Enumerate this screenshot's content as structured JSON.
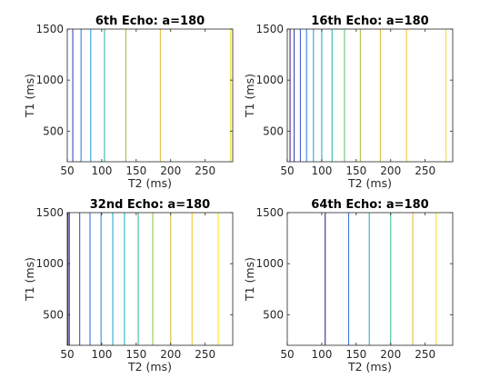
{
  "chart_data": [
    {
      "type": "line",
      "title": "6th Echo: a=180",
      "xlabel": "T2 (ms)",
      "ylabel": "T1 (ms)",
      "xlim": [
        50,
        290
      ],
      "ylim": [
        200,
        1500
      ],
      "xticks": [
        "50",
        "100",
        "150",
        "200",
        "250"
      ],
      "yticks": [
        "500",
        "1000",
        "1500"
      ],
      "grid": false,
      "contour_levels": [
        {
          "x": 58,
          "color": "#3b4fc0"
        },
        {
          "x": 70,
          "color": "#3c80d8"
        },
        {
          "x": 84,
          "color": "#2a9fd6"
        },
        {
          "x": 104,
          "color": "#36b8b2"
        },
        {
          "x": 135,
          "color": "#9bc24a"
        },
        {
          "x": 185,
          "color": "#e1bd3b"
        },
        {
          "x": 287,
          "color": "#f5e02c"
        }
      ]
    },
    {
      "type": "line",
      "title": "16th Echo: a=180",
      "xlabel": "T2 (ms)",
      "ylabel": "T1 (ms)",
      "xlim": [
        50,
        290
      ],
      "ylim": [
        200,
        1500
      ],
      "xticks": [
        "50",
        "100",
        "150",
        "200",
        "250"
      ],
      "yticks": [
        "500",
        "1000",
        "1500"
      ],
      "grid": false,
      "contour_levels": [
        {
          "x": 54,
          "color": "#3e2a8f"
        },
        {
          "x": 60,
          "color": "#4540b8"
        },
        {
          "x": 69,
          "color": "#3f63d6"
        },
        {
          "x": 78,
          "color": "#3a85e0"
        },
        {
          "x": 88,
          "color": "#2f9ed8"
        },
        {
          "x": 100,
          "color": "#26aecb"
        },
        {
          "x": 115,
          "color": "#2dbbb1"
        },
        {
          "x": 133,
          "color": "#6fc36f"
        },
        {
          "x": 156,
          "color": "#a6c445"
        },
        {
          "x": 185,
          "color": "#e0be3a"
        },
        {
          "x": 223,
          "color": "#f2cc31"
        },
        {
          "x": 280,
          "color": "#f7e22a"
        }
      ]
    },
    {
      "type": "line",
      "title": "32nd Echo: a=180",
      "xlabel": "T2 (ms)",
      "ylabel": "T1 (ms)",
      "xlim": [
        50,
        290
      ],
      "ylim": [
        200,
        1500
      ],
      "xticks": [
        "50",
        "100",
        "150",
        "200",
        "250"
      ],
      "yticks": [
        "500",
        "1000",
        "1500"
      ],
      "grid": false,
      "contour_levels": [
        {
          "x": 51,
          "color": "#3e2a8f"
        },
        {
          "x": 53,
          "color": "#4234a6"
        },
        {
          "x": 68,
          "color": "#4652c7"
        },
        {
          "x": 83,
          "color": "#3e73da"
        },
        {
          "x": 99,
          "color": "#3392dc"
        },
        {
          "x": 116,
          "color": "#28a8d0"
        },
        {
          "x": 133,
          "color": "#27b6bd"
        },
        {
          "x": 153,
          "color": "#3fbe9c"
        },
        {
          "x": 174,
          "color": "#98c34d"
        },
        {
          "x": 200,
          "color": "#d4c03c"
        },
        {
          "x": 231,
          "color": "#f0c934"
        },
        {
          "x": 269,
          "color": "#f7e22a"
        }
      ]
    },
    {
      "type": "line",
      "title": "64th Echo: a=180",
      "xlabel": "T2 (ms)",
      "ylabel": "T1 (ms)",
      "xlim": [
        50,
        290
      ],
      "ylim": [
        200,
        1500
      ],
      "xticks": [
        "50",
        "100",
        "150",
        "200",
        "250"
      ],
      "yticks": [
        "500",
        "1000",
        "1500"
      ],
      "grid": false,
      "contour_levels": [
        {
          "x": 105,
          "color": "#3e2a8f"
        },
        {
          "x": 139,
          "color": "#3b78d8"
        },
        {
          "x": 169,
          "color": "#2aaed0"
        },
        {
          "x": 200,
          "color": "#45be98"
        },
        {
          "x": 232,
          "color": "#e2be39"
        },
        {
          "x": 266,
          "color": "#f7e22a"
        }
      ]
    }
  ]
}
